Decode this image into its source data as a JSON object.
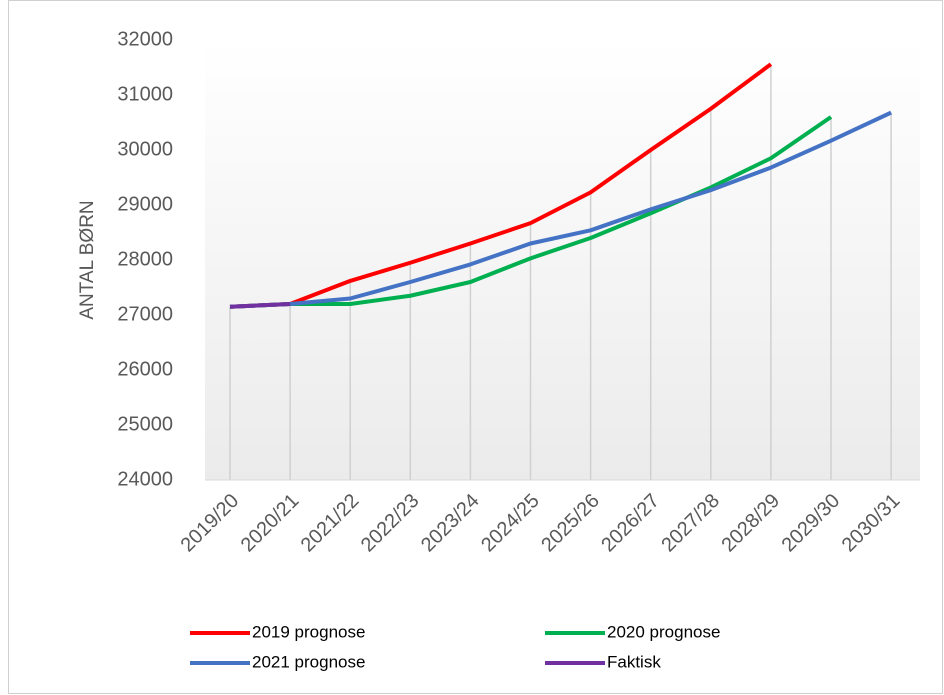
{
  "chart_data": {
    "type": "line",
    "y_label": "ANTAL BØRN",
    "categories": [
      "2019/20",
      "2020/21",
      "2021/22",
      "2022/23",
      "2023/24",
      "2024/25",
      "2025/26",
      "2026/27",
      "2027/28",
      "2028/29",
      "2029/30",
      "2030/31"
    ],
    "series": [
      {
        "name": "2019 prognose",
        "color": "#ff0000",
        "values": [
          27150,
          27200,
          27620,
          27950,
          28300,
          28670,
          29230,
          30000,
          30750,
          31560,
          null,
          null
        ]
      },
      {
        "name": "2020 prognose",
        "color": "#00b050",
        "values": [
          27150,
          27200,
          27200,
          27350,
          27600,
          28030,
          28400,
          28850,
          29320,
          29850,
          30600,
          null
        ]
      },
      {
        "name": "2021 prognose",
        "color": "#4472c4",
        "values": [
          27150,
          27200,
          27300,
          27600,
          27920,
          28300,
          28540,
          28920,
          29270,
          29680,
          30170,
          30680
        ]
      },
      {
        "name": "Faktisk",
        "color": "#7030a0",
        "values": [
          27150,
          27200,
          null,
          null,
          null,
          null,
          null,
          null,
          null,
          null,
          null,
          null
        ]
      }
    ],
    "ylim": [
      24000,
      32000
    ],
    "yticks": [
      24000,
      25000,
      26000,
      27000,
      28000,
      29000,
      30000,
      31000,
      32000
    ],
    "drop_lines": true,
    "legend": "bottom"
  }
}
